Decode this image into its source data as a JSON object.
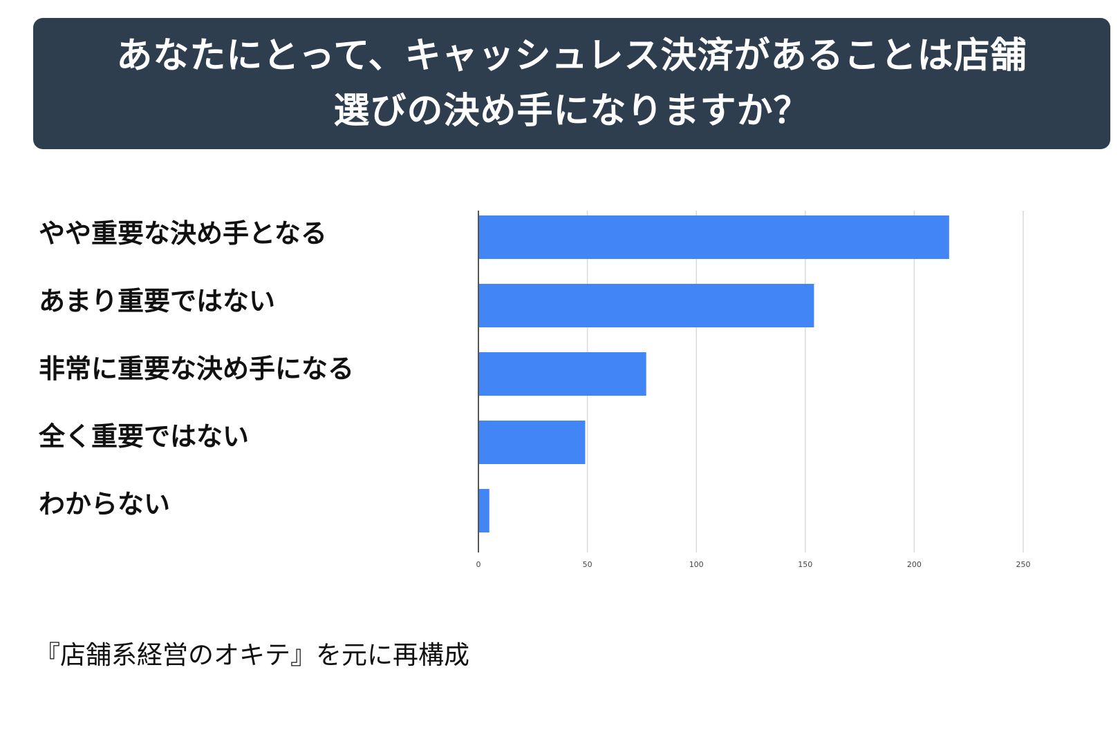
{
  "title": {
    "line1": "あなたにとって、キャッシュレス決済があることは店舗",
    "line2": "選びの決め手になりますか？"
  },
  "chart_data": {
    "type": "bar",
    "orientation": "horizontal",
    "categories": [
      "やや重要な決め手となる",
      "あまり重要ではない",
      "非常に重要な決め手になる",
      "全く重要ではない",
      "わからない"
    ],
    "values": [
      216,
      154,
      77,
      49,
      5
    ],
    "xlim": [
      0,
      250
    ],
    "x_ticks": [
      "0",
      "50",
      "100",
      "150",
      "200",
      "250"
    ],
    "grid": true,
    "bar_color": "#4285f4",
    "grid_color": "#d9d9d9"
  },
  "source": "『店舗系経営のオキテ』を元に再構成",
  "colors": {
    "title_bg": "#2e3e4e",
    "title_text": "#ffffff"
  }
}
